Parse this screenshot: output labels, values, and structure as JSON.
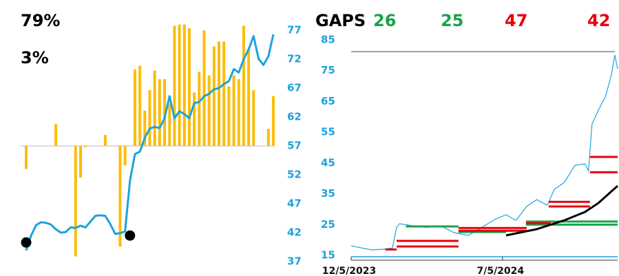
{
  "chart_data": [
    {
      "type": "combo",
      "annotations": [
        "79%",
        "3%"
      ],
      "ylim": [
        36,
        78
      ],
      "yticks": [
        37,
        42,
        47,
        52,
        57,
        62,
        67,
        72,
        77
      ],
      "y2lim": [
        -100,
        100
      ],
      "series": [
        {
          "type": "bar",
          "axis": "y2",
          "color": "#fbbd0c",
          "values": [
            -19,
            0,
            0,
            0,
            0,
            0,
            18,
            0,
            0,
            0,
            -91,
            -26,
            -1,
            0,
            0,
            0,
            9,
            0,
            0,
            -83,
            -16,
            0,
            63,
            66,
            29,
            46,
            62,
            55,
            55,
            35,
            99,
            100,
            100,
            97,
            44,
            61,
            95,
            58,
            82,
            86,
            86,
            49,
            58,
            55,
            99,
            80,
            46,
            0,
            0,
            14,
            41
          ]
        },
        {
          "type": "line",
          "color": "#1ba3dc",
          "values": [
            38.9,
            41.5,
            43.3,
            43.8,
            43.7,
            43.4,
            42.6,
            42.0,
            42.1,
            42.9,
            42.8,
            43.2,
            42.9,
            43.9,
            44.9,
            45.0,
            44.9,
            43.5,
            41.8,
            41.9,
            42.2,
            51.0,
            55.6,
            56.0,
            58.4,
            60.0,
            60.3,
            60.1,
            61.8,
            65.6,
            61.8,
            63.0,
            62.5,
            61.8,
            64.4,
            64.6,
            65.6,
            66.0,
            66.8,
            67.0,
            67.7,
            68.2,
            70.3,
            69.7,
            72.0,
            73.7,
            76.0,
            72.1,
            71.0,
            72.5,
            76.3
          ]
        }
      ],
      "markers": [
        {
          "index": 0,
          "value": 40.3
        },
        {
          "index": 21,
          "value": 41.5
        }
      ],
      "marker_color": "#000000"
    },
    {
      "type": "line",
      "title": "GAPS",
      "gap_labels": [
        {
          "value": 26,
          "color": "#1aa34a"
        },
        {
          "value": 25,
          "color": "#1aa34a"
        },
        {
          "value": 47,
          "color": "#e8000b"
        },
        {
          "value": 42,
          "color": "#e8000b"
        }
      ],
      "x": [
        "12/5/2023",
        "12/20/2023",
        "1/3/2024",
        "1/19/2024",
        "2/1/2024",
        "2/7/2024",
        "2/11/2024",
        "3/1/2024",
        "3/20/2024",
        "4/9/2024",
        "4/28/2024",
        "5/18/2024",
        "6/6/2024",
        "6/25/2024",
        "7/10/2024",
        "7/24/2024",
        "8/8/2024",
        "8/22/2024",
        "9/6/2024",
        "9/16/2024",
        "9/30/2024",
        "10/15/2024",
        "10/29/2024",
        "11/3/2024",
        "11/8/2024",
        "11/17/2024",
        "11/27/2024",
        "12/5/2024",
        "12/10/2024",
        "12/14/2024"
      ],
      "series": [
        {
          "color": "#1ba3dc",
          "values": [
            18.1,
            17.4,
            16.8,
            17.0,
            17.4,
            24.1,
            25.3,
            24.6,
            24.1,
            24.6,
            22.4,
            21.5,
            24.1,
            26.8,
            28.2,
            26.4,
            30.9,
            33.1,
            31.3,
            36.5,
            38.7,
            44.3,
            44.7,
            42.5,
            57.7,
            62.2,
            66.7,
            73.4,
            80.1,
            75.6
          ]
        }
      ],
      "xlim": [
        "12/5/2023",
        "12/14/2024"
      ],
      "xticks": [
        "12/5/2023",
        "7/5/2024"
      ],
      "ylim": [
        13,
        88
      ],
      "yticks": [
        15,
        25,
        35,
        45,
        55,
        65,
        75,
        85
      ],
      "gaps": [
        {
          "start": "1/22/2024",
          "end": "2/7/2024",
          "value": 16.9,
          "color": "#e8000b"
        },
        {
          "start": "2/7/2024",
          "end": "5/4/2024",
          "value": 19.7,
          "color": "#e8000b"
        },
        {
          "start": "2/7/2024",
          "end": "5/4/2024",
          "value": 17.9,
          "color": "#e8000b"
        },
        {
          "start": "2/20/2024",
          "end": "5/4/2024",
          "value": 24.4,
          "color": "#1aa34a"
        },
        {
          "start": "5/4/2024",
          "end": "7/10/2024",
          "value": 22.6,
          "color": "#1aa34a"
        },
        {
          "start": "5/4/2024",
          "end": "8/8/2024",
          "value": 23.9,
          "color": "#e8000b"
        },
        {
          "start": "5/4/2024",
          "end": "8/8/2024",
          "value": 23.0,
          "color": "#e8000b"
        },
        {
          "start": "8/7/2024",
          "end": "12/14/2024",
          "value": 26,
          "color": "#1aa34a"
        },
        {
          "start": "8/7/2024",
          "end": "12/14/2024",
          "value": 25,
          "color": "#1aa34a"
        },
        {
          "start": "8/7/2024",
          "end": "9/11/2024",
          "value": 25.5,
          "color": "#e8000b"
        },
        {
          "start": "9/8/2024",
          "end": "11/5/2024",
          "value": 32.4,
          "color": "#e8000b"
        },
        {
          "start": "9/8/2024",
          "end": "11/5/2024",
          "value": 30.9,
          "color": "#e8000b"
        },
        {
          "start": "11/5/2024",
          "end": "12/14/2024",
          "value": 47,
          "color": "#e8000b"
        },
        {
          "start": "11/5/2024",
          "end": "12/14/2024",
          "value": 42,
          "color": "#e8000b"
        }
      ],
      "curve": {
        "color": "#000000",
        "x": [
          "7/10/2024",
          "8/22/2024",
          "9/30/2024",
          "10/29/2024",
          "11/17/2024",
          "12/14/2024"
        ],
        "values": [
          21.5,
          23.5,
          26.4,
          29.1,
          32.0,
          37.6
        ]
      },
      "level": {
        "value": 81.2,
        "color": "#444444",
        "start": "12/5/2023",
        "end": "12/10/2024"
      }
    }
  ]
}
